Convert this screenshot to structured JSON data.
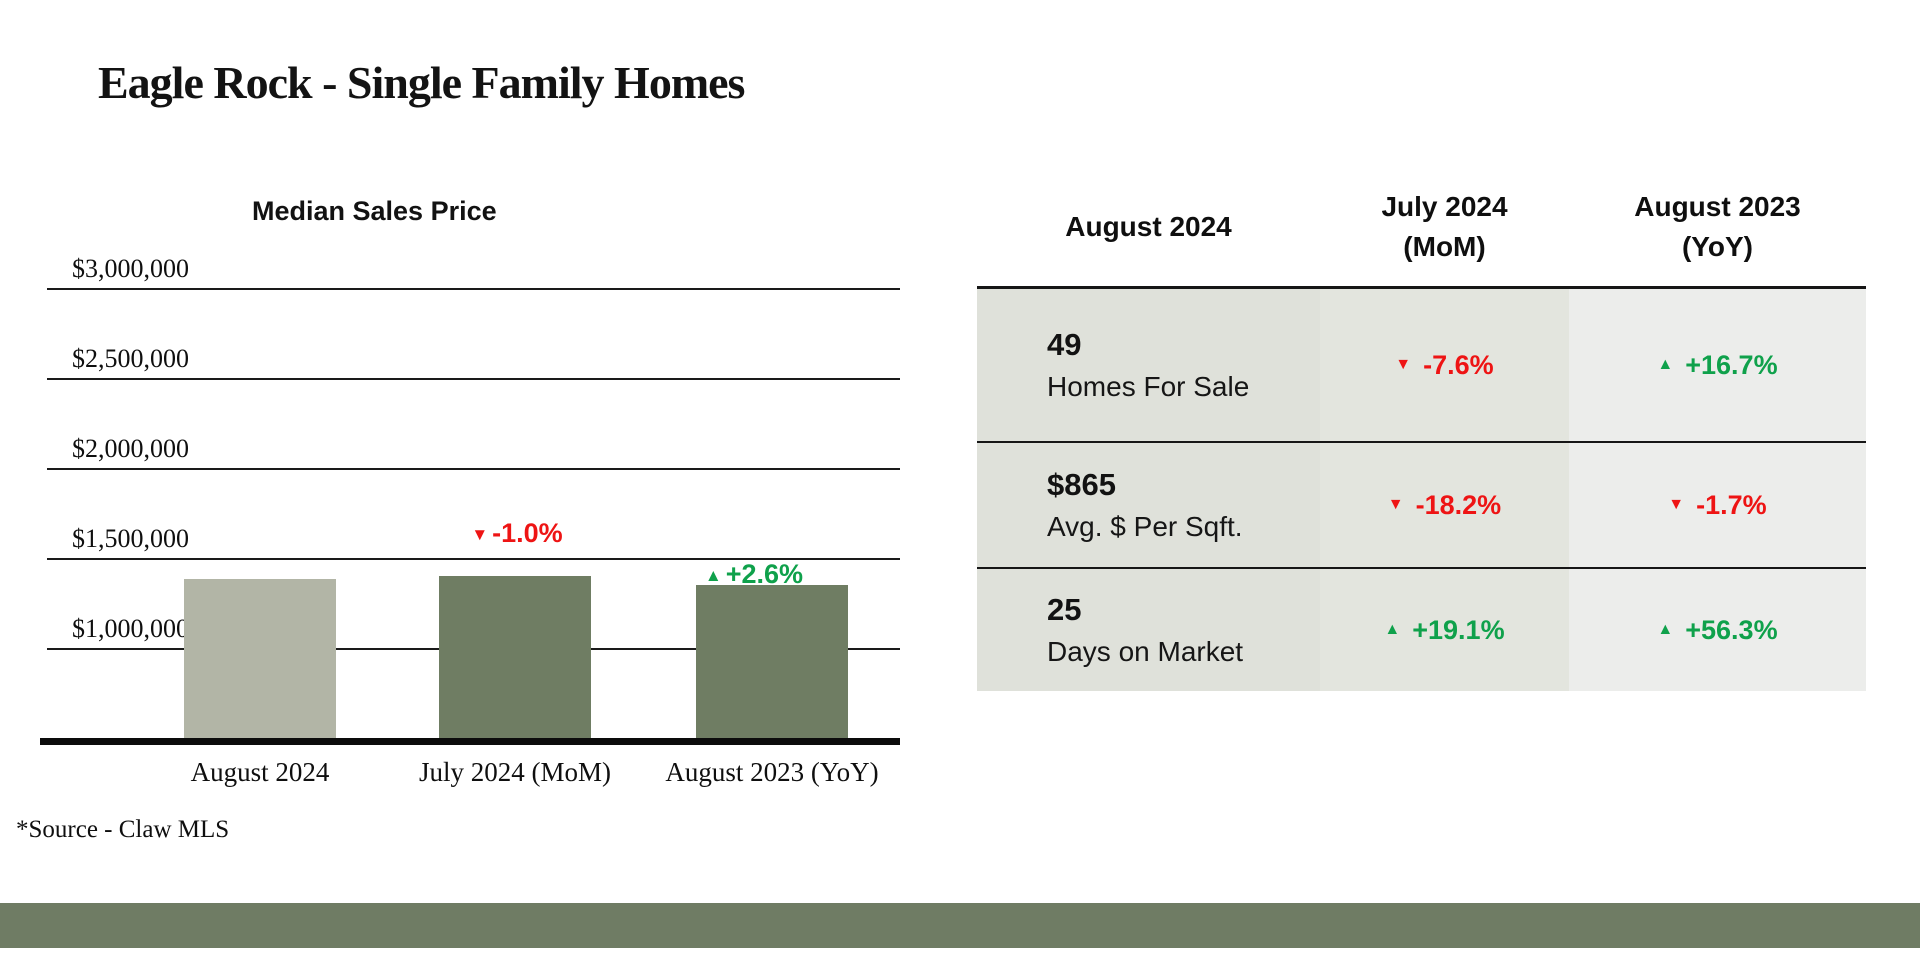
{
  "page": {
    "title": "Eagle Rock - Single Family Homes",
    "source_note": "*Source - Claw MLS"
  },
  "colors": {
    "text": "#131313",
    "negative_red": "#ee1414",
    "positive_green": "#0fa14b",
    "bar_light_sage": "#b2b5a6",
    "bar_dark_sage": "#6f7d63",
    "footer_bar": "#6f7c64",
    "table_col1_bg": "#dfe1da",
    "table_col2_bg": "#e3e5de",
    "table_col3_bg": "#ecedeb"
  },
  "chart_data": {
    "type": "bar",
    "title": "Median Sales Price",
    "categories": [
      "August 2024",
      "July 2024 (MoM)",
      "August 2023 (YoY)"
    ],
    "values": [
      1385000,
      1400000,
      1350000
    ],
    "bar_colors": [
      "#b2b5a6",
      "#6f7d63",
      "#6f7d63"
    ],
    "annotations": [
      null,
      {
        "icon": "▼",
        "text": "-1.0%",
        "type": "negative",
        "color": "#ee1414"
      },
      {
        "icon": "▲",
        "text": "+2.6%",
        "type": "positive",
        "color": "#0fa14b"
      }
    ],
    "xlabel": "",
    "ylabel": "",
    "y_ticks": [
      "$3,000,000",
      "$2,500,000",
      "$2,000,000",
      "$1,500,000",
      "$1,000,000"
    ],
    "y_tick_values": [
      3000000,
      2500000,
      2000000,
      1500000,
      1000000
    ],
    "ylim": [
      500000,
      3250000
    ],
    "grid": true,
    "legend": false,
    "values_note": "bar heights read off gridlines; approx. values consistent with -1.0% MoM and +2.6% YoY"
  },
  "table": {
    "headers": [
      {
        "line1": "August 2024",
        "line2": ""
      },
      {
        "line1": "July 2024",
        "line2": "(MoM)"
      },
      {
        "line1": "August 2023",
        "line2": "(YoY)"
      }
    ],
    "rows": [
      {
        "value": "49",
        "label": "Homes For Sale",
        "mom": {
          "icon": "▼",
          "text": "-7.6%",
          "type": "negative",
          "color": "#ee1414"
        },
        "yoy": {
          "icon": "▲",
          "text": "+16.7%",
          "type": "positive",
          "color": "#0fa14b"
        }
      },
      {
        "value": "$865",
        "label": "Avg. $ Per Sqft.",
        "mom": {
          "icon": "▼",
          "text": "-18.2%",
          "type": "negative",
          "color": "#ee1414"
        },
        "yoy": {
          "icon": "▼",
          "text": "-1.7%",
          "type": "negative",
          "color": "#ee1414"
        }
      },
      {
        "value": "25",
        "label": "Days on Market",
        "mom": {
          "icon": "▲",
          "text": "+19.1%",
          "type": "positive",
          "color": "#0fa14b"
        },
        "yoy": {
          "icon": "▲",
          "text": "+56.3%",
          "type": "positive",
          "color": "#0fa14b"
        }
      }
    ]
  }
}
